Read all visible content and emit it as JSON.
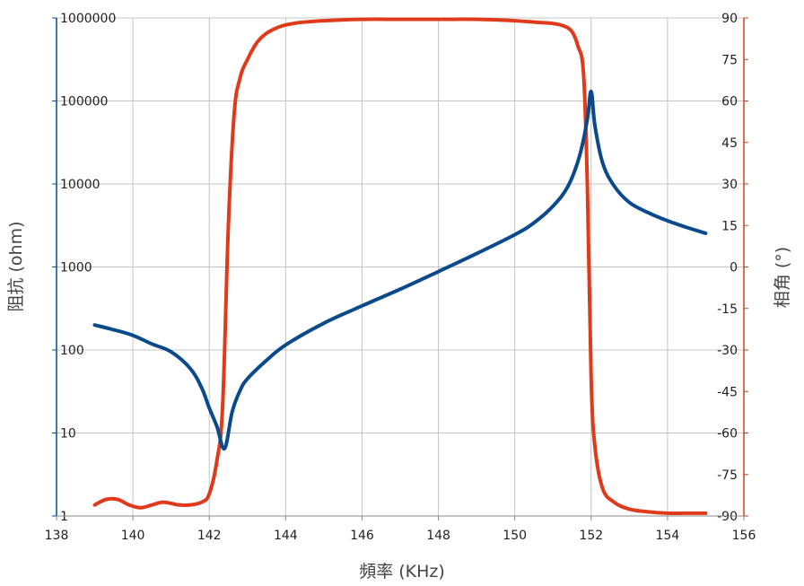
{
  "chart_data": {
    "type": "line",
    "title": "",
    "xlabel": "頻率 (KHz)",
    "ylabel_left": "阻抗 (ohm)",
    "ylabel_right": "相角 (°)",
    "xlim": [
      138,
      156
    ],
    "x_ticks": [
      138,
      140,
      142,
      144,
      146,
      148,
      150,
      152,
      154,
      156
    ],
    "y_left": {
      "scale": "log",
      "lim": [
        1,
        1000000
      ],
      "ticks": [
        1,
        10,
        100,
        1000,
        10000,
        100000,
        1000000
      ],
      "tick_labels": [
        "1",
        "10",
        "100",
        "1000",
        "10000",
        "100000",
        "1000000"
      ],
      "color": "#0a4a8c"
    },
    "y_right": {
      "scale": "linear",
      "lim": [
        -90,
        90
      ],
      "ticks": [
        -90,
        -75,
        -60,
        -45,
        -30,
        -15,
        0,
        15,
        30,
        45,
        60,
        75,
        90
      ],
      "color": "#e03a1a"
    },
    "grid": true,
    "series": [
      {
        "axis": "left",
        "color": "#0a4a8c",
        "x": [
          139.0,
          139.5,
          140.0,
          140.5,
          141.0,
          141.5,
          141.8,
          142.0,
          142.2,
          142.4,
          142.6,
          142.8,
          143.0,
          143.5,
          144.0,
          145.0,
          146.0,
          147.0,
          148.0,
          149.0,
          150.0,
          150.5,
          151.0,
          151.4,
          151.7,
          151.9,
          152.0,
          152.1,
          152.3,
          152.6,
          153.0,
          153.5,
          154.0,
          154.5,
          155.0
        ],
        "values": [
          200,
          175,
          150,
          118,
          95,
          60,
          35,
          20,
          12,
          6.5,
          18,
          32,
          45,
          75,
          115,
          210,
          340,
          540,
          880,
          1450,
          2450,
          3400,
          5400,
          9500,
          22000,
          60000,
          130000,
          50000,
          18000,
          9500,
          6000,
          4500,
          3600,
          3000,
          2550
        ]
      },
      {
        "axis": "right",
        "color": "#e03a1a",
        "x": [
          139.0,
          139.3,
          139.6,
          139.9,
          140.2,
          140.5,
          140.8,
          141.2,
          141.5,
          141.8,
          142.0,
          142.2,
          142.35,
          142.5,
          142.65,
          142.8,
          143.0,
          143.3,
          143.7,
          144.2,
          145.0,
          146.0,
          147.0,
          148.0,
          149.0,
          150.0,
          150.5,
          151.0,
          151.3,
          151.5,
          151.65,
          151.8,
          151.9,
          152.0,
          152.1,
          152.3,
          152.6,
          153.0,
          153.5,
          154.0,
          154.5,
          155.0
        ],
        "values": [
          -86,
          -84,
          -84,
          -86,
          -87,
          -86,
          -85,
          -86,
          -86,
          -85,
          -82,
          -70,
          -50,
          15,
          55,
          68,
          75,
          82,
          86,
          88,
          89,
          89.5,
          89.5,
          89.5,
          89.5,
          89,
          88.5,
          88,
          87,
          85,
          80,
          70,
          30,
          -40,
          -65,
          -80,
          -85,
          -87.5,
          -88.5,
          -89,
          -89,
          -89
        ]
      }
    ]
  }
}
